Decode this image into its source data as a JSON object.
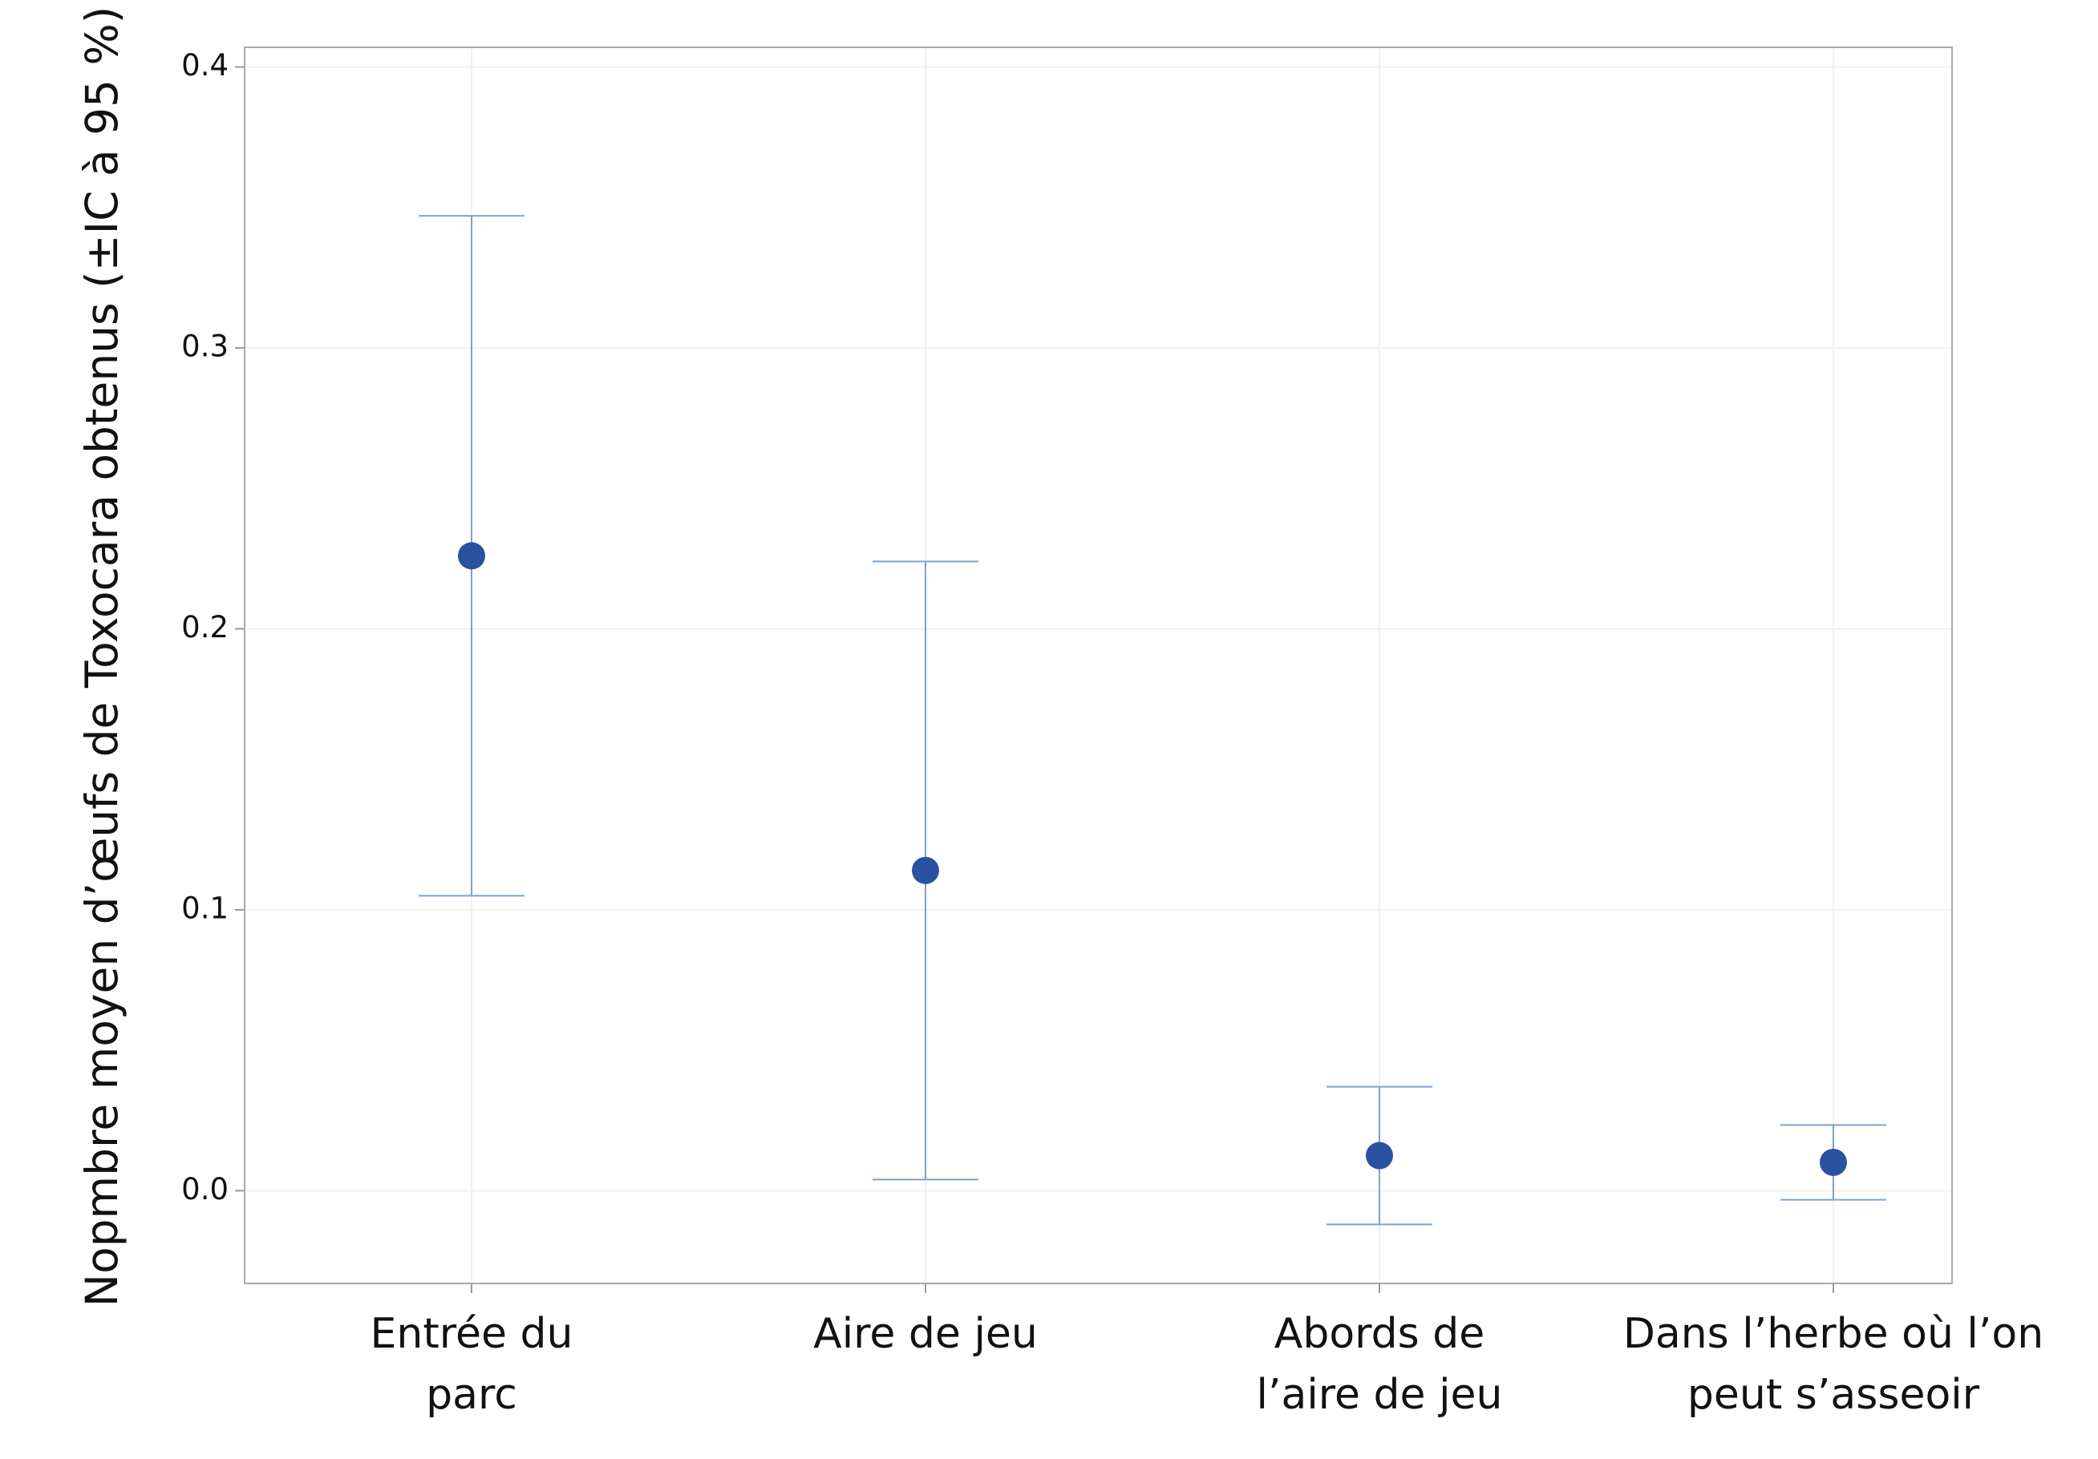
{
  "chart_data": {
    "type": "errorbar",
    "ylabel": "Nopmbre moyen d’œufs de Toxocara obtenus (±IC à 95 %)",
    "categories": [
      "Entrée du\nparc",
      "Aire de jeu",
      "Abords de\nl’aire de jeu",
      "Dans l’herbe où l’on\npeut s’asseoir"
    ],
    "values": [
      0.226,
      0.114,
      0.0125,
      0.0101
    ],
    "errors": [
      0.121,
      0.11,
      0.0245,
      0.0133
    ],
    "color": "#2a52a0",
    "error_color": "#7fa0cf",
    "ylim": [
      -0.033,
      0.407
    ],
    "yticks": [
      {
        "value": 0,
        "label": "0.0"
      },
      0.1,
      0.2,
      0.3,
      0.4
    ],
    "grid": true
  }
}
